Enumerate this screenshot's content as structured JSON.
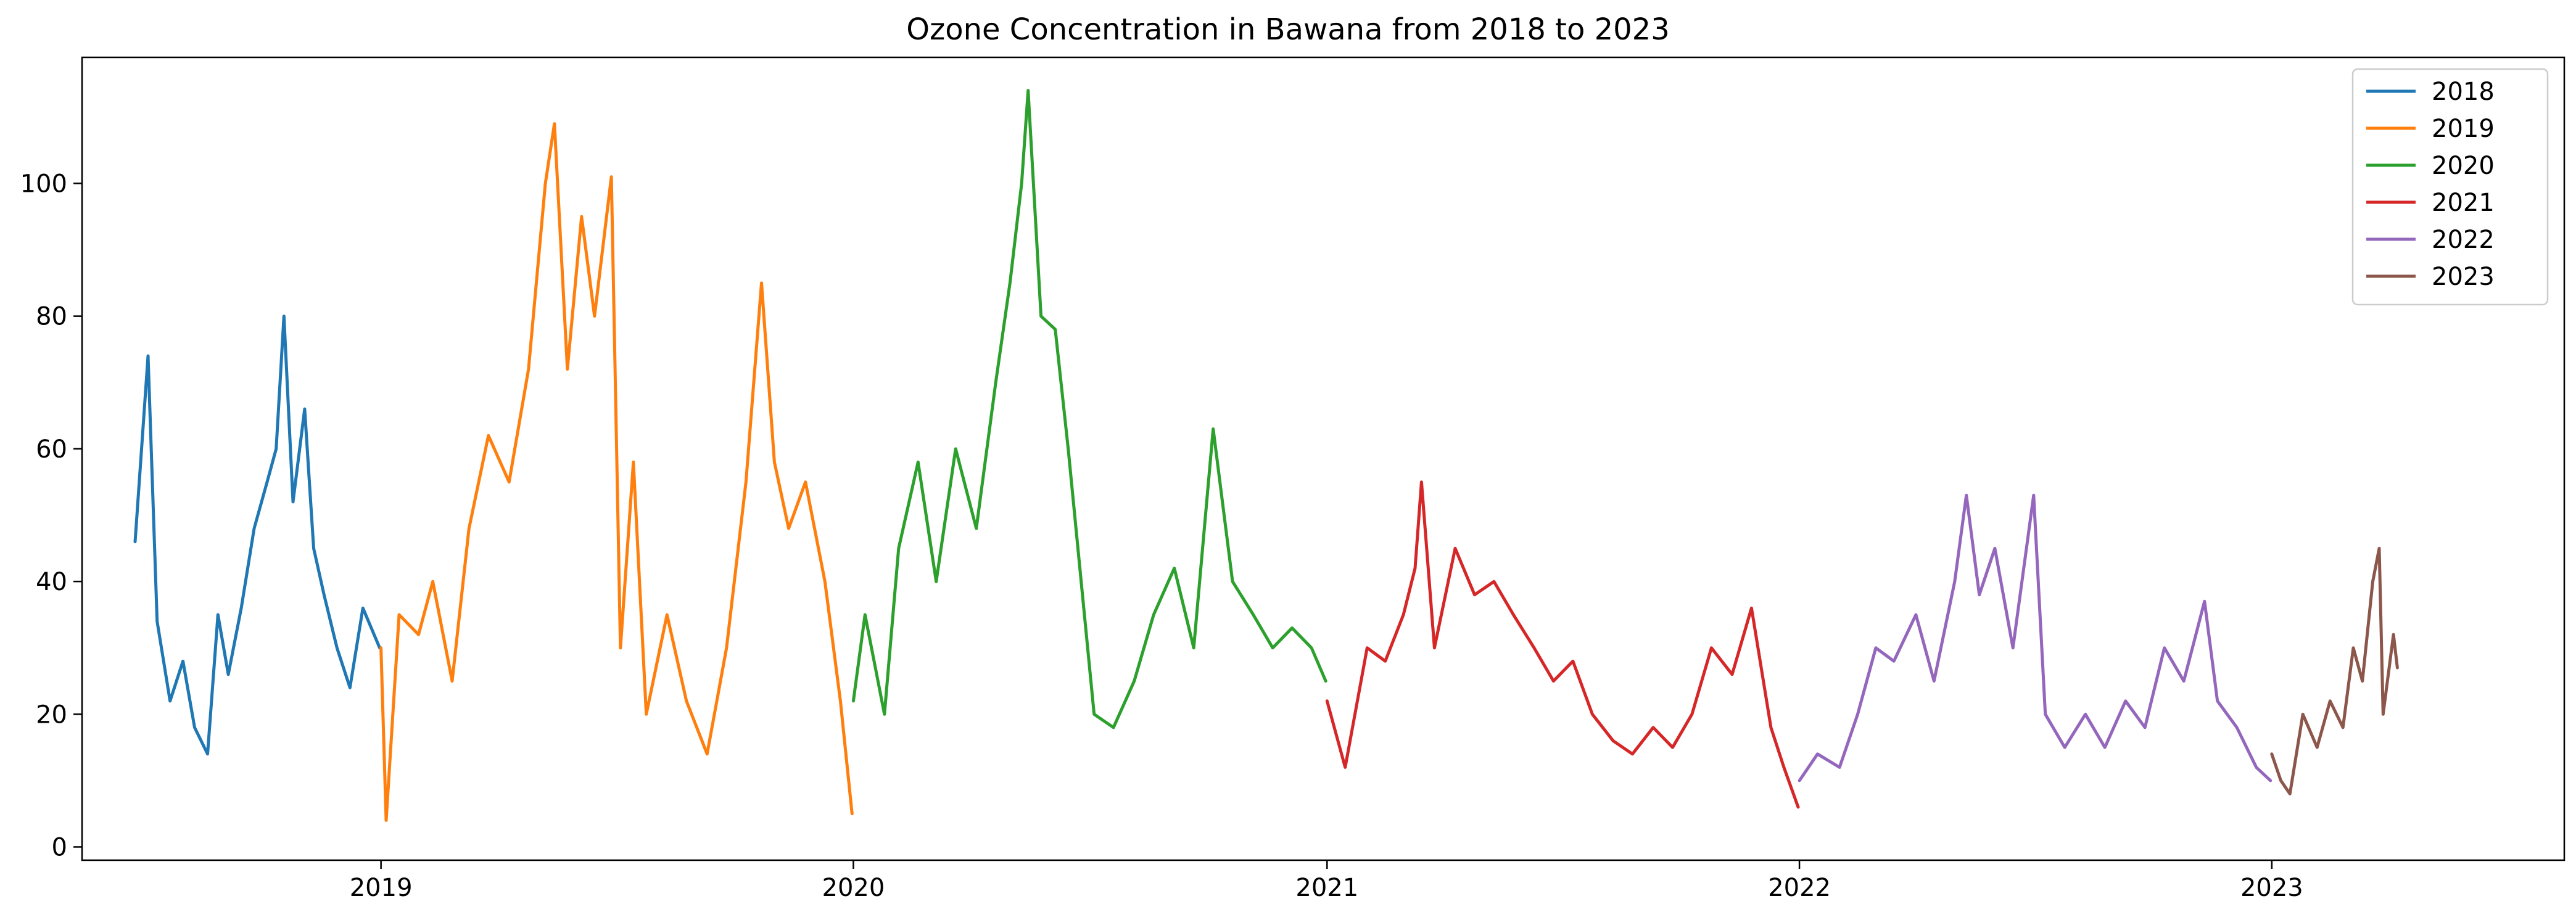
{
  "chart_data": {
    "type": "line",
    "title": "Ozone Concentration in Bawana from 2018 to 2023",
    "xlabel": "",
    "ylabel": "",
    "x_axis": {
      "kind": "date",
      "range": [
        "2018-05-15",
        "2023-08-15"
      ],
      "ticks": [
        {
          "date": "2019-01-01",
          "label": "2019"
        },
        {
          "date": "2020-01-01",
          "label": "2020"
        },
        {
          "date": "2021-01-01",
          "label": "2021"
        },
        {
          "date": "2022-01-01",
          "label": "2022"
        },
        {
          "date": "2023-01-01",
          "label": "2023"
        }
      ]
    },
    "y_axis": {
      "range": [
        -2,
        119
      ],
      "ticks": [
        0,
        20,
        40,
        60,
        80,
        100
      ]
    },
    "grid": false,
    "legend": {
      "position": "top-right"
    },
    "series": [
      {
        "name": "2018",
        "color": "#1f77b4",
        "points": [
          [
            "2018-06-25",
            46
          ],
          [
            "2018-07-05",
            74
          ],
          [
            "2018-07-12",
            34
          ],
          [
            "2018-07-22",
            22
          ],
          [
            "2018-08-01",
            28
          ],
          [
            "2018-08-10",
            18
          ],
          [
            "2018-08-20",
            14
          ],
          [
            "2018-08-28",
            35
          ],
          [
            "2018-09-05",
            26
          ],
          [
            "2018-09-15",
            36
          ],
          [
            "2018-09-25",
            48
          ],
          [
            "2018-10-05",
            55
          ],
          [
            "2018-10-12",
            60
          ],
          [
            "2018-10-18",
            80
          ],
          [
            "2018-10-25",
            52
          ],
          [
            "2018-11-03",
            66
          ],
          [
            "2018-11-10",
            45
          ],
          [
            "2018-11-18",
            38
          ],
          [
            "2018-11-28",
            30
          ],
          [
            "2018-12-08",
            24
          ],
          [
            "2018-12-18",
            36
          ],
          [
            "2018-12-31",
            30
          ]
        ]
      },
      {
        "name": "2019",
        "color": "#ff7f0e",
        "points": [
          [
            "2019-01-01",
            30
          ],
          [
            "2019-01-05",
            4
          ],
          [
            "2019-01-15",
            35
          ],
          [
            "2019-01-30",
            32
          ],
          [
            "2019-02-10",
            40
          ],
          [
            "2019-02-25",
            25
          ],
          [
            "2019-03-10",
            48
          ],
          [
            "2019-03-25",
            62
          ],
          [
            "2019-04-10",
            55
          ],
          [
            "2019-04-25",
            72
          ],
          [
            "2019-05-08",
            100
          ],
          [
            "2019-05-15",
            109
          ],
          [
            "2019-05-25",
            72
          ],
          [
            "2019-06-05",
            95
          ],
          [
            "2019-06-15",
            80
          ],
          [
            "2019-06-28",
            101
          ],
          [
            "2019-07-05",
            30
          ],
          [
            "2019-07-15",
            58
          ],
          [
            "2019-07-25",
            20
          ],
          [
            "2019-08-10",
            35
          ],
          [
            "2019-08-25",
            22
          ],
          [
            "2019-09-10",
            14
          ],
          [
            "2019-09-25",
            30
          ],
          [
            "2019-10-10",
            55
          ],
          [
            "2019-10-22",
            85
          ],
          [
            "2019-11-01",
            58
          ],
          [
            "2019-11-12",
            48
          ],
          [
            "2019-11-25",
            55
          ],
          [
            "2019-12-10",
            40
          ],
          [
            "2019-12-22",
            22
          ],
          [
            "2019-12-31",
            5
          ]
        ]
      },
      {
        "name": "2020",
        "color": "#2ca02c",
        "points": [
          [
            "2020-01-01",
            22
          ],
          [
            "2020-01-10",
            35
          ],
          [
            "2020-01-25",
            20
          ],
          [
            "2020-02-05",
            45
          ],
          [
            "2020-02-20",
            58
          ],
          [
            "2020-03-05",
            40
          ],
          [
            "2020-03-20",
            60
          ],
          [
            "2020-04-05",
            48
          ],
          [
            "2020-04-20",
            70
          ],
          [
            "2020-05-01",
            85
          ],
          [
            "2020-05-10",
            100
          ],
          [
            "2020-05-15",
            114
          ],
          [
            "2020-05-25",
            80
          ],
          [
            "2020-06-05",
            78
          ],
          [
            "2020-06-15",
            60
          ],
          [
            "2020-06-25",
            40
          ],
          [
            "2020-07-05",
            20
          ],
          [
            "2020-07-20",
            18
          ],
          [
            "2020-08-05",
            25
          ],
          [
            "2020-08-20",
            35
          ],
          [
            "2020-09-05",
            42
          ],
          [
            "2020-09-20",
            30
          ],
          [
            "2020-10-05",
            63
          ],
          [
            "2020-10-20",
            40
          ],
          [
            "2020-11-05",
            35
          ],
          [
            "2020-11-20",
            30
          ],
          [
            "2020-12-05",
            33
          ],
          [
            "2020-12-20",
            30
          ],
          [
            "2020-12-31",
            25
          ]
        ]
      },
      {
        "name": "2021",
        "color": "#d62728",
        "points": [
          [
            "2021-01-01",
            22
          ],
          [
            "2021-01-15",
            12
          ],
          [
            "2021-02-01",
            30
          ],
          [
            "2021-02-15",
            28
          ],
          [
            "2021-03-01",
            35
          ],
          [
            "2021-03-10",
            42
          ],
          [
            "2021-03-15",
            55
          ],
          [
            "2021-03-25",
            30
          ],
          [
            "2021-04-10",
            45
          ],
          [
            "2021-04-25",
            38
          ],
          [
            "2021-05-10",
            40
          ],
          [
            "2021-05-25",
            35
          ],
          [
            "2021-06-10",
            30
          ],
          [
            "2021-06-25",
            25
          ],
          [
            "2021-07-10",
            28
          ],
          [
            "2021-07-25",
            20
          ],
          [
            "2021-08-10",
            16
          ],
          [
            "2021-08-25",
            14
          ],
          [
            "2021-09-10",
            18
          ],
          [
            "2021-09-25",
            15
          ],
          [
            "2021-10-10",
            20
          ],
          [
            "2021-10-25",
            30
          ],
          [
            "2021-11-10",
            26
          ],
          [
            "2021-11-25",
            36
          ],
          [
            "2021-12-10",
            18
          ],
          [
            "2021-12-20",
            12
          ],
          [
            "2021-12-31",
            6
          ]
        ]
      },
      {
        "name": "2022",
        "color": "#9467bd",
        "points": [
          [
            "2022-01-01",
            10
          ],
          [
            "2022-01-15",
            14
          ],
          [
            "2022-02-01",
            12
          ],
          [
            "2022-02-15",
            20
          ],
          [
            "2022-03-01",
            30
          ],
          [
            "2022-03-15",
            28
          ],
          [
            "2022-04-01",
            35
          ],
          [
            "2022-04-15",
            25
          ],
          [
            "2022-05-01",
            40
          ],
          [
            "2022-05-10",
            53
          ],
          [
            "2022-05-20",
            38
          ],
          [
            "2022-06-01",
            45
          ],
          [
            "2022-06-15",
            30
          ],
          [
            "2022-07-01",
            53
          ],
          [
            "2022-07-10",
            20
          ],
          [
            "2022-07-25",
            15
          ],
          [
            "2022-08-10",
            20
          ],
          [
            "2022-08-25",
            15
          ],
          [
            "2022-09-10",
            22
          ],
          [
            "2022-09-25",
            18
          ],
          [
            "2022-10-10",
            30
          ],
          [
            "2022-10-25",
            25
          ],
          [
            "2022-11-10",
            37
          ],
          [
            "2022-11-20",
            22
          ],
          [
            "2022-12-05",
            18
          ],
          [
            "2022-12-20",
            12
          ],
          [
            "2022-12-31",
            10
          ]
        ]
      },
      {
        "name": "2023",
        "color": "#8c564b",
        "points": [
          [
            "2023-01-01",
            14
          ],
          [
            "2023-01-08",
            10
          ],
          [
            "2023-01-15",
            8
          ],
          [
            "2023-01-25",
            20
          ],
          [
            "2023-02-05",
            15
          ],
          [
            "2023-02-15",
            22
          ],
          [
            "2023-02-25",
            18
          ],
          [
            "2023-03-05",
            30
          ],
          [
            "2023-03-12",
            25
          ],
          [
            "2023-03-20",
            40
          ],
          [
            "2023-03-25",
            45
          ],
          [
            "2023-03-28",
            20
          ],
          [
            "2023-04-05",
            32
          ],
          [
            "2023-04-08",
            27
          ]
        ]
      }
    ]
  }
}
